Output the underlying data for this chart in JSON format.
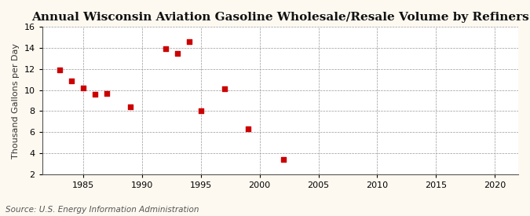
{
  "title": "Annual Wisconsin Aviation Gasoline Wholesale/Resale Volume by Refiners",
  "ylabel": "Thousand Gallons per Day",
  "source": "Source: U.S. Energy Information Administration",
  "background_color": "#fef9f0",
  "plot_bg_color": "#ffffff",
  "xlim": [
    1981.5,
    2022
  ],
  "ylim": [
    2,
    16
  ],
  "xticks": [
    1985,
    1990,
    1995,
    2000,
    2005,
    2010,
    2015,
    2020
  ],
  "yticks": [
    2,
    4,
    6,
    8,
    10,
    12,
    14,
    16
  ],
  "data_x": [
    1983,
    1984,
    1985,
    1986,
    1987,
    1989,
    1992,
    1993,
    1994,
    1995,
    1997,
    1999,
    2002
  ],
  "data_y": [
    11.9,
    10.9,
    10.2,
    9.6,
    9.7,
    8.4,
    13.9,
    13.5,
    14.6,
    8.0,
    10.1,
    6.3,
    3.4
  ],
  "marker_color": "#cc0000",
  "marker": "s",
  "marker_size": 4,
  "title_fontsize": 11,
  "label_fontsize": 8,
  "tick_fontsize": 8,
  "source_fontsize": 7.5
}
